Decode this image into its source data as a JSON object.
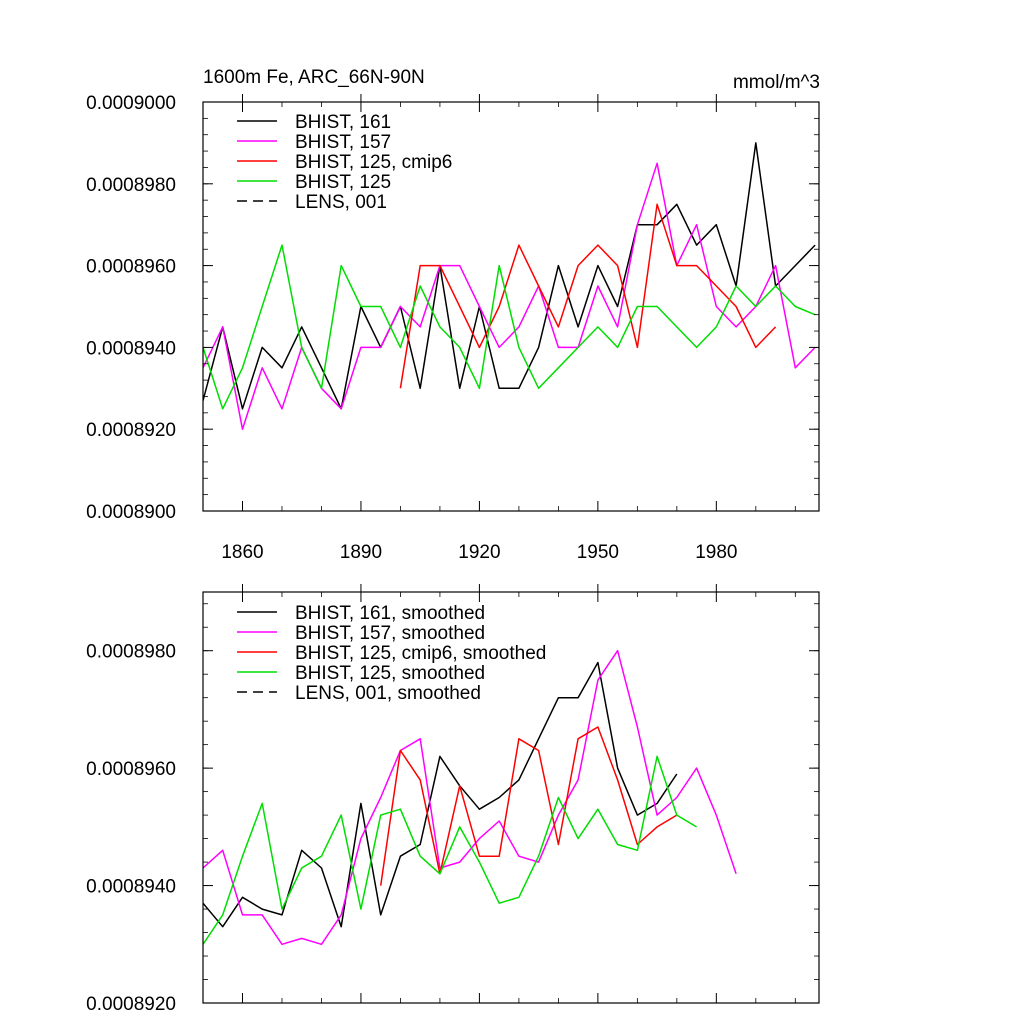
{
  "chart_data": [
    {
      "type": "line",
      "title": "1600m Fe, ARC_66N-90N",
      "units": "mmol/m^3",
      "xlim": [
        1850,
        2006
      ],
      "ylim": [
        0.00089,
        0.0009
      ],
      "x_ticks": [
        1860,
        1890,
        1920,
        1950,
        1980
      ],
      "y_ticks": [
        "0.0009000",
        "0.0008980",
        "0.0008960",
        "0.0008940",
        "0.0008920",
        "0.0008900"
      ],
      "y_tick_values": [
        0.0009,
        0.000898,
        0.000896,
        0.000894,
        0.000892,
        0.00089
      ],
      "legend_position": "top-left",
      "grid": false,
      "series": [
        {
          "name": "BHIST, 161",
          "color": "#000000",
          "dash": "solid",
          "x_start": 1850,
          "x_step": 5,
          "values": [
            0.0008927,
            0.0008945,
            0.0008925,
            0.000894,
            0.0008935,
            0.0008945,
            0.0008935,
            0.0008925,
            0.000895,
            0.000894,
            0.000895,
            0.000893,
            0.000896,
            0.000893,
            0.000895,
            0.000893,
            0.000893,
            0.000894,
            0.000896,
            0.0008945,
            0.000896,
            0.000895,
            0.000897,
            0.000897,
            0.0008975,
            0.0008965,
            0.000897,
            0.0008955,
            0.000899,
            0.0008955,
            0.000896,
            0.0008965
          ]
        },
        {
          "name": "BHIST, 157",
          "color": "#ff00ff",
          "dash": "solid",
          "x_start": 1850,
          "x_step": 5,
          "values": [
            0.0008935,
            0.0008945,
            0.000892,
            0.0008935,
            0.0008925,
            0.000894,
            0.000893,
            0.0008925,
            0.000894,
            0.000894,
            0.000895,
            0.0008945,
            0.000896,
            0.000896,
            0.000895,
            0.000894,
            0.0008945,
            0.0008955,
            0.000894,
            0.000894,
            0.0008955,
            0.0008945,
            0.000897,
            0.0008985,
            0.000896,
            0.000897,
            0.000895,
            0.0008945,
            0.000895,
            0.000896,
            0.0008935,
            0.000894
          ]
        },
        {
          "name": "BHIST, 125, cmip6",
          "color": "#ff0000",
          "dash": "solid",
          "x_start": 1850,
          "x_step": 5,
          "values": [
            null,
            null,
            null,
            null,
            null,
            null,
            null,
            null,
            null,
            null,
            0.000893,
            0.000896,
            0.000896,
            0.000895,
            0.000894,
            0.000895,
            0.0008965,
            0.0008955,
            0.0008945,
            0.000896,
            0.0008965,
            0.000896,
            0.000894,
            0.0008975,
            0.000896,
            0.000896,
            0.0008955,
            0.000895,
            0.000894,
            0.0008945,
            null,
            null
          ]
        },
        {
          "name": "BHIST, 125",
          "color": "#00dd00",
          "dash": "solid",
          "x_start": 1850,
          "x_step": 5,
          "values": [
            0.000894,
            0.0008925,
            0.0008935,
            0.000895,
            0.0008965,
            0.000894,
            0.000893,
            0.000896,
            0.000895,
            0.000895,
            0.000894,
            0.0008955,
            0.0008945,
            0.000894,
            0.000893,
            0.000896,
            0.000894,
            0.000893,
            0.0008935,
            0.000894,
            0.0008945,
            0.000894,
            0.000895,
            0.000895,
            0.0008945,
            0.000894,
            0.0008945,
            0.0008955,
            0.000895,
            0.0008955,
            0.000895,
            0.0008948
          ]
        },
        {
          "name": "LENS, 001",
          "color": "#000000",
          "dash": "dashed",
          "values": []
        }
      ]
    },
    {
      "type": "line",
      "xlim": [
        1850,
        2006
      ],
      "ylim": [
        0.000892,
        0.000899
      ],
      "x_ticks": [
        1860,
        1890,
        1920,
        1950,
        1980
      ],
      "y_ticks": [
        "0.0008980",
        "0.0008960",
        "0.0008940",
        "0.0008920"
      ],
      "y_tick_values": [
        0.000898,
        0.000896,
        0.000894,
        0.000892
      ],
      "legend_position": "top-left",
      "grid": false,
      "series": [
        {
          "name": "BHIST, 161, smoothed",
          "color": "#000000",
          "dash": "solid",
          "x_start": 1850,
          "x_step": 5,
          "values": [
            0.0008937,
            0.0008933,
            0.0008938,
            0.0008936,
            0.0008935,
            0.0008946,
            0.0008943,
            0.0008933,
            0.0008954,
            0.0008935,
            0.0008945,
            0.0008947,
            0.0008962,
            0.0008957,
            0.0008953,
            0.0008955,
            0.0008958,
            0.0008965,
            0.0008972,
            0.0008972,
            0.0008978,
            0.000896,
            0.0008952,
            0.0008954,
            0.0008959,
            null,
            null,
            null,
            null,
            null,
            null,
            null
          ]
        },
        {
          "name": "BHIST, 157, smoothed",
          "color": "#ff00ff",
          "dash": "solid",
          "x_start": 1850,
          "x_step": 5,
          "values": [
            0.0008943,
            0.0008946,
            0.0008935,
            0.0008935,
            0.000893,
            0.0008931,
            0.000893,
            0.0008935,
            0.0008948,
            0.0008955,
            0.0008963,
            0.0008965,
            0.0008943,
            0.0008944,
            0.0008948,
            0.0008951,
            0.0008945,
            0.0008944,
            0.0008952,
            0.0008958,
            0.0008975,
            0.000898,
            0.0008967,
            0.0008952,
            0.0008955,
            0.000896,
            0.0008952,
            0.0008942,
            null,
            null,
            null,
            null
          ]
        },
        {
          "name": "BHIST, 125, cmip6, smoothed",
          "color": "#ff0000",
          "dash": "solid",
          "x_start": 1850,
          "x_step": 5,
          "values": [
            null,
            null,
            null,
            null,
            null,
            null,
            null,
            null,
            null,
            0.000894,
            0.0008963,
            0.0008958,
            0.0008942,
            0.0008957,
            0.0008945,
            0.0008945,
            0.0008965,
            0.0008963,
            0.0008947,
            0.0008965,
            0.0008967,
            0.0008958,
            0.0008947,
            0.000895,
            0.0008952,
            null,
            null,
            null,
            null,
            null,
            null,
            null
          ]
        },
        {
          "name": "BHIST, 125, smoothed",
          "color": "#00dd00",
          "dash": "solid",
          "x_start": 1850,
          "x_step": 5,
          "values": [
            0.000893,
            0.0008935,
            0.0008945,
            0.0008954,
            0.0008936,
            0.0008943,
            0.0008945,
            0.0008952,
            0.0008936,
            0.0008952,
            0.0008953,
            0.0008945,
            0.0008942,
            0.000895,
            0.0008944,
            0.0008937,
            0.0008938,
            0.0008945,
            0.0008955,
            0.0008948,
            0.0008953,
            0.0008947,
            0.0008946,
            0.0008962,
            0.0008952,
            0.000895,
            null,
            null,
            null,
            null,
            null,
            null
          ]
        },
        {
          "name": "LENS, 001, smoothed",
          "color": "#000000",
          "dash": "dashed",
          "values": []
        }
      ]
    }
  ]
}
